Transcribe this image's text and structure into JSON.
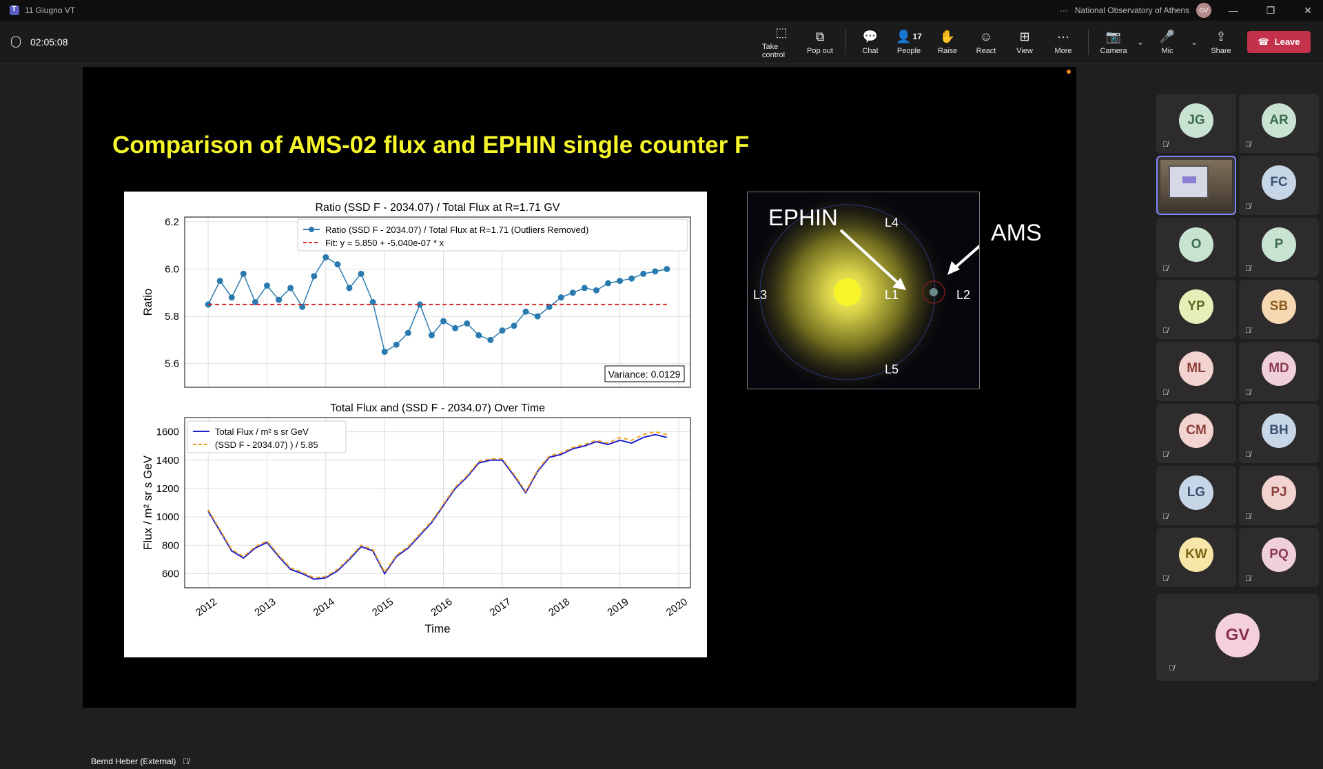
{
  "window": {
    "title": "11 Giugno VT",
    "org": "National Observatory of Athens",
    "user_initials": "GV",
    "more": "···",
    "minimize": "—",
    "restore": "❐",
    "close": "✕"
  },
  "meeting": {
    "elapsed": "02:05:08"
  },
  "toolbar": {
    "take_control": "Take control",
    "pop_out": "Pop out",
    "chat": "Chat",
    "people": "People",
    "people_count": "17",
    "raise": "Raise",
    "react": "React",
    "view": "View",
    "more": "More",
    "camera": "Camera",
    "mic": "Mic",
    "share": "Share",
    "leave": "Leave"
  },
  "slide": {
    "title": "Comparison of AMS-02 flux and EPHIN single counter F",
    "ams_label": "AMS",
    "orbit": {
      "ephin": "EPHIN",
      "l1": "L1",
      "l2": "L2",
      "l3": "L3",
      "l4": "L4",
      "l5": "L5"
    }
  },
  "chart_data": [
    {
      "type": "line",
      "title": "Ratio (SSD F - 2034.07) / Total Flux at R=1.71 GV",
      "ylabel": "Ratio",
      "ylim": [
        5.5,
        6.22
      ],
      "xlim": [
        2011.6,
        2020.2
      ],
      "yticks": [
        "6.2",
        "6.0",
        "5.8",
        "5.6"
      ],
      "series": [
        {
          "name": "Ratio (SSD F - 2034.07) / Total Flux at R=1.71 (Outliers Removed)",
          "color": "#2a7ab0",
          "x": [
            2012.0,
            2012.2,
            2012.4,
            2012.6,
            2012.8,
            2013.0,
            2013.2,
            2013.4,
            2013.6,
            2013.8,
            2014.0,
            2014.2,
            2014.4,
            2014.6,
            2014.8,
            2015.0,
            2015.2,
            2015.4,
            2015.6,
            2015.8,
            2016.0,
            2016.2,
            2016.4,
            2016.6,
            2016.8,
            2017.0,
            2017.2,
            2017.4,
            2017.6,
            2017.8,
            2018.0,
            2018.2,
            2018.4,
            2018.6,
            2018.8,
            2019.0,
            2019.2,
            2019.4,
            2019.6,
            2019.8
          ],
          "values": [
            5.85,
            5.95,
            5.88,
            5.98,
            5.86,
            5.93,
            5.87,
            5.92,
            5.84,
            5.97,
            6.05,
            6.02,
            5.92,
            5.98,
            5.86,
            5.65,
            5.68,
            5.73,
            5.85,
            5.72,
            5.78,
            5.75,
            5.77,
            5.72,
            5.7,
            5.74,
            5.76,
            5.82,
            5.8,
            5.84,
            5.88,
            5.9,
            5.92,
            5.91,
            5.94,
            5.95,
            5.96,
            5.98,
            5.99,
            6.0
          ]
        },
        {
          "name": "Fit: y = 5.850 + -5.040e-07 * x",
          "color": "#d62728",
          "x": [
            2012.0,
            2019.8
          ],
          "values": [
            5.85,
            5.85
          ]
        }
      ],
      "annotation": "Variance: 0.0129"
    },
    {
      "type": "line",
      "title": "Total Flux and (SSD F - 2034.07) Over Time",
      "xlabel": "Time",
      "ylabel": "Flux / m² sr s GeV",
      "ylim": [
        500,
        1700
      ],
      "xlim": [
        2011.6,
        2020.2
      ],
      "xticks": [
        "2012",
        "2013",
        "2014",
        "2015",
        "2016",
        "2017",
        "2018",
        "2019",
        "2020"
      ],
      "yticks": [
        "1600",
        "1400",
        "1200",
        "1000",
        "800",
        "600"
      ],
      "series": [
        {
          "name": "Total Flux / m² s sr GeV",
          "color": "#1f1fcc",
          "x": [
            2012.0,
            2012.2,
            2012.4,
            2012.6,
            2012.8,
            2013.0,
            2013.2,
            2013.4,
            2013.6,
            2013.8,
            2014.0,
            2014.2,
            2014.4,
            2014.6,
            2014.8,
            2015.0,
            2015.2,
            2015.4,
            2015.6,
            2015.8,
            2016.0,
            2016.2,
            2016.4,
            2016.6,
            2016.8,
            2017.0,
            2017.2,
            2017.4,
            2017.6,
            2017.8,
            2018.0,
            2018.2,
            2018.4,
            2018.6,
            2018.8,
            2019.0,
            2019.2,
            2019.4,
            2019.6,
            2019.8
          ],
          "values": [
            1040,
            900,
            760,
            710,
            780,
            820,
            720,
            630,
            600,
            560,
            570,
            620,
            700,
            790,
            760,
            600,
            720,
            780,
            870,
            960,
            1080,
            1200,
            1280,
            1380,
            1400,
            1400,
            1290,
            1170,
            1320,
            1420,
            1440,
            1480,
            1500,
            1530,
            1510,
            1540,
            1520,
            1560,
            1580,
            1560
          ]
        },
        {
          "name": "(SSD F - 2034.07) ) / 5.85",
          "color": "#f0a020",
          "x": [
            2012.0,
            2012.2,
            2012.4,
            2012.6,
            2012.8,
            2013.0,
            2013.2,
            2013.4,
            2013.6,
            2013.8,
            2014.0,
            2014.2,
            2014.4,
            2014.6,
            2014.8,
            2015.0,
            2015.2,
            2015.4,
            2015.6,
            2015.8,
            2016.0,
            2016.2,
            2016.4,
            2016.6,
            2016.8,
            2017.0,
            2017.2,
            2017.4,
            2017.6,
            2017.8,
            2018.0,
            2018.2,
            2018.4,
            2018.6,
            2018.8,
            2019.0,
            2019.2,
            2019.4,
            2019.6,
            2019.8
          ],
          "values": [
            1050,
            910,
            770,
            720,
            790,
            830,
            730,
            640,
            610,
            570,
            580,
            630,
            710,
            800,
            770,
            610,
            730,
            790,
            880,
            970,
            1090,
            1210,
            1290,
            1390,
            1410,
            1410,
            1300,
            1180,
            1330,
            1430,
            1450,
            1490,
            1510,
            1540,
            1520,
            1560,
            1540,
            1580,
            1600,
            1580
          ]
        }
      ]
    }
  ],
  "speaker": {
    "name": "Bernd Heber (External)"
  },
  "participants": [
    {
      "initials": "JG",
      "bg": "#c9e3d3",
      "fg": "#3d6b50"
    },
    {
      "initials": "AR",
      "bg": "#c9e3d3",
      "fg": "#3d6b50"
    },
    {
      "initials": "",
      "video": true
    },
    {
      "initials": "FC",
      "bg": "#c7d6e6",
      "fg": "#3a5270"
    },
    {
      "initials": "O",
      "bg": "#c9e3d3",
      "fg": "#3d6b50"
    },
    {
      "initials": "P",
      "bg": "#c9e3d3",
      "fg": "#3d6b50"
    },
    {
      "initials": "YP",
      "bg": "#e8eeb8",
      "fg": "#5e6a22"
    },
    {
      "initials": "SB",
      "bg": "#f6d9b3",
      "fg": "#8a5a1e"
    },
    {
      "initials": "ML",
      "bg": "#f2d3cf",
      "fg": "#8a3f38"
    },
    {
      "initials": "MD",
      "bg": "#f0d0d8",
      "fg": "#8a3a52"
    },
    {
      "initials": "CM",
      "bg": "#f2d3cf",
      "fg": "#8a3f38"
    },
    {
      "initials": "BH",
      "bg": "#c7d6e6",
      "fg": "#3a5270"
    },
    {
      "initials": "LG",
      "bg": "#c7d6e6",
      "fg": "#3a5270"
    },
    {
      "initials": "PJ",
      "bg": "#f2d3cf",
      "fg": "#8a3f38"
    },
    {
      "initials": "KW",
      "bg": "#f6e7a8",
      "fg": "#7a6316"
    },
    {
      "initials": "PQ",
      "bg": "#f0d0d8",
      "fg": "#8a3a52"
    }
  ],
  "self_tile": {
    "initials": "GV",
    "bg": "#f3d0dc",
    "fg": "#8a2f52"
  },
  "icons": {
    "mic_off": "🎙̸",
    "chevron": "⌄"
  }
}
